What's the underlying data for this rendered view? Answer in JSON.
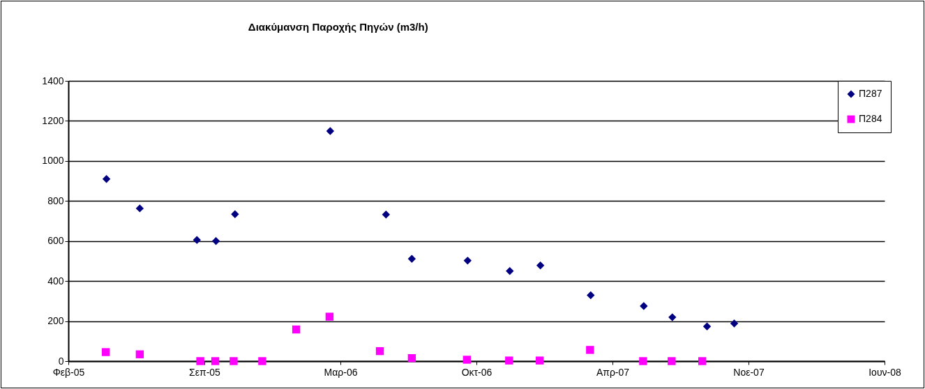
{
  "chart_data": {
    "type": "scatter",
    "title": "Διακύμανση Παροχής Πηγών (m3/h)",
    "series": [
      {
        "name": "Π287",
        "color": "#000080",
        "marker": "diamond",
        "x": [
          "2005-04-14",
          "2005-06-02",
          "2005-08-25",
          "2005-09-22",
          "2005-10-20",
          "2006-03-09",
          "2006-05-30",
          "2006-07-07",
          "2006-09-27",
          "2006-11-28",
          "2007-01-12",
          "2007-03-27",
          "2007-06-13",
          "2007-07-25",
          "2007-09-14",
          "2007-10-24"
        ],
        "values": [
          910,
          763,
          605,
          600,
          734,
          1149,
          732,
          511,
          502,
          450,
          478,
          329,
          275,
          219,
          173,
          188
        ]
      },
      {
        "name": "Π284",
        "color": "#ff00ff",
        "marker": "square",
        "x": [
          "2005-04-13",
          "2005-06-02",
          "2005-08-30",
          "2005-09-21",
          "2005-10-18",
          "2005-11-29",
          "2006-01-18",
          "2006-03-08",
          "2006-05-21",
          "2006-07-07",
          "2006-09-26",
          "2006-11-27",
          "2007-01-11",
          "2007-03-26",
          "2007-06-12",
          "2007-07-24",
          "2007-09-07"
        ],
        "values": [
          45,
          34,
          0,
          0,
          0,
          0,
          158,
          222,
          50,
          15,
          7,
          3,
          3,
          56,
          0,
          0,
          0
        ]
      }
    ],
    "xlim": [
      "2005-02-17",
      "2008-06-01"
    ],
    "xticks": [
      {
        "value": "2005-02-17",
        "label": "Φεβ-05"
      },
      {
        "value": "2005-09-05",
        "label": "Σεπ-05"
      },
      {
        "value": "2006-03-24",
        "label": "Μαρ-06"
      },
      {
        "value": "2006-10-10",
        "label": "Οκτ-06"
      },
      {
        "value": "2007-04-28",
        "label": "Απρ-07"
      },
      {
        "value": "2007-11-14",
        "label": "Νοε-07"
      },
      {
        "value": "2008-06-01",
        "label": "Ιουν-08"
      }
    ],
    "ylim": [
      0,
      1400
    ],
    "yticks": [
      0,
      200,
      400,
      600,
      800,
      1000,
      1200,
      1400
    ],
    "grid": "y",
    "legend": "top right"
  }
}
